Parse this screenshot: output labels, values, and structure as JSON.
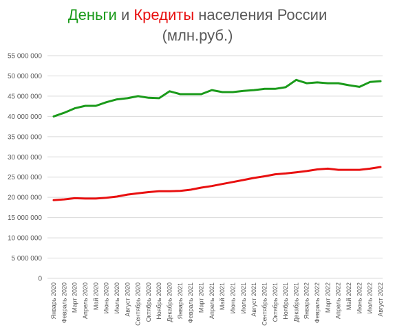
{
  "title": {
    "part1": "Деньги",
    "part2": " и ",
    "part3": "Кредиты",
    "part4": " населения России",
    "subtitle": "(млн.руб.)"
  },
  "colors": {
    "money": "#1a9a1a",
    "credit": "#e81010",
    "grid": "#d9d9d9",
    "text": "#595959"
  },
  "chart_data": {
    "type": "line",
    "title": "Деньги и Кредиты населения России",
    "subtitle": "(млн.руб.)",
    "xlabel": "",
    "ylabel": "",
    "ylim": [
      0,
      55000000
    ],
    "yticks": [
      "0",
      "5 000 000",
      "10 000 000",
      "15 000 000",
      "20 000 000",
      "25 000 000",
      "30 000 000",
      "35 000 000",
      "40 000 000",
      "45 000 000",
      "50 000 000",
      "55 000 000"
    ],
    "grid": true,
    "legend": "none",
    "categories": [
      "Январь 2020",
      "Февраль 2020",
      "Март 2020",
      "Апрель 2020",
      "Май 2020",
      "Июнь 2020",
      "Июль 2020",
      "Август 2020",
      "Сентябрь 2020",
      "Октябрь 2020",
      "Ноябрь 2020",
      "Декабрь 2020",
      "Январь 2021",
      "Февраль 2021",
      "Март 2021",
      "Апрель 2021",
      "Май 2021",
      "Июнь 2021",
      "Июль 2021",
      "Август 2021",
      "Сентябрь 2021",
      "Октябрь 2021",
      "Ноябрь 2021",
      "Декабрь 2021",
      "Январь 2022",
      "Февраль 2022",
      "Март 2022",
      "Апрель 2022",
      "Май 2022",
      "Июнь 2022",
      "Июль 2022",
      "Август 2022"
    ],
    "series": [
      {
        "name": "Деньги",
        "color": "#1a9a1a",
        "values": [
          40000000,
          40900000,
          42000000,
          42600000,
          42600000,
          43500000,
          44200000,
          44500000,
          45000000,
          44600000,
          44500000,
          46200000,
          45500000,
          45500000,
          45500000,
          46500000,
          46000000,
          46000000,
          46300000,
          46500000,
          46800000,
          46800000,
          47200000,
          49000000,
          48200000,
          48400000,
          48200000,
          48200000,
          47700000,
          47300000,
          48500000,
          48700000
        ]
      },
      {
        "name": "Кредиты",
        "color": "#e81010",
        "values": [
          19300000,
          19500000,
          19800000,
          19700000,
          19700000,
          19900000,
          20200000,
          20700000,
          21000000,
          21300000,
          21500000,
          21500000,
          21600000,
          21900000,
          22400000,
          22800000,
          23300000,
          23800000,
          24300000,
          24800000,
          25200000,
          25700000,
          25900000,
          26200000,
          26500000,
          26900000,
          27100000,
          26800000,
          26800000,
          26800000,
          27100000,
          27500000
        ]
      }
    ]
  }
}
